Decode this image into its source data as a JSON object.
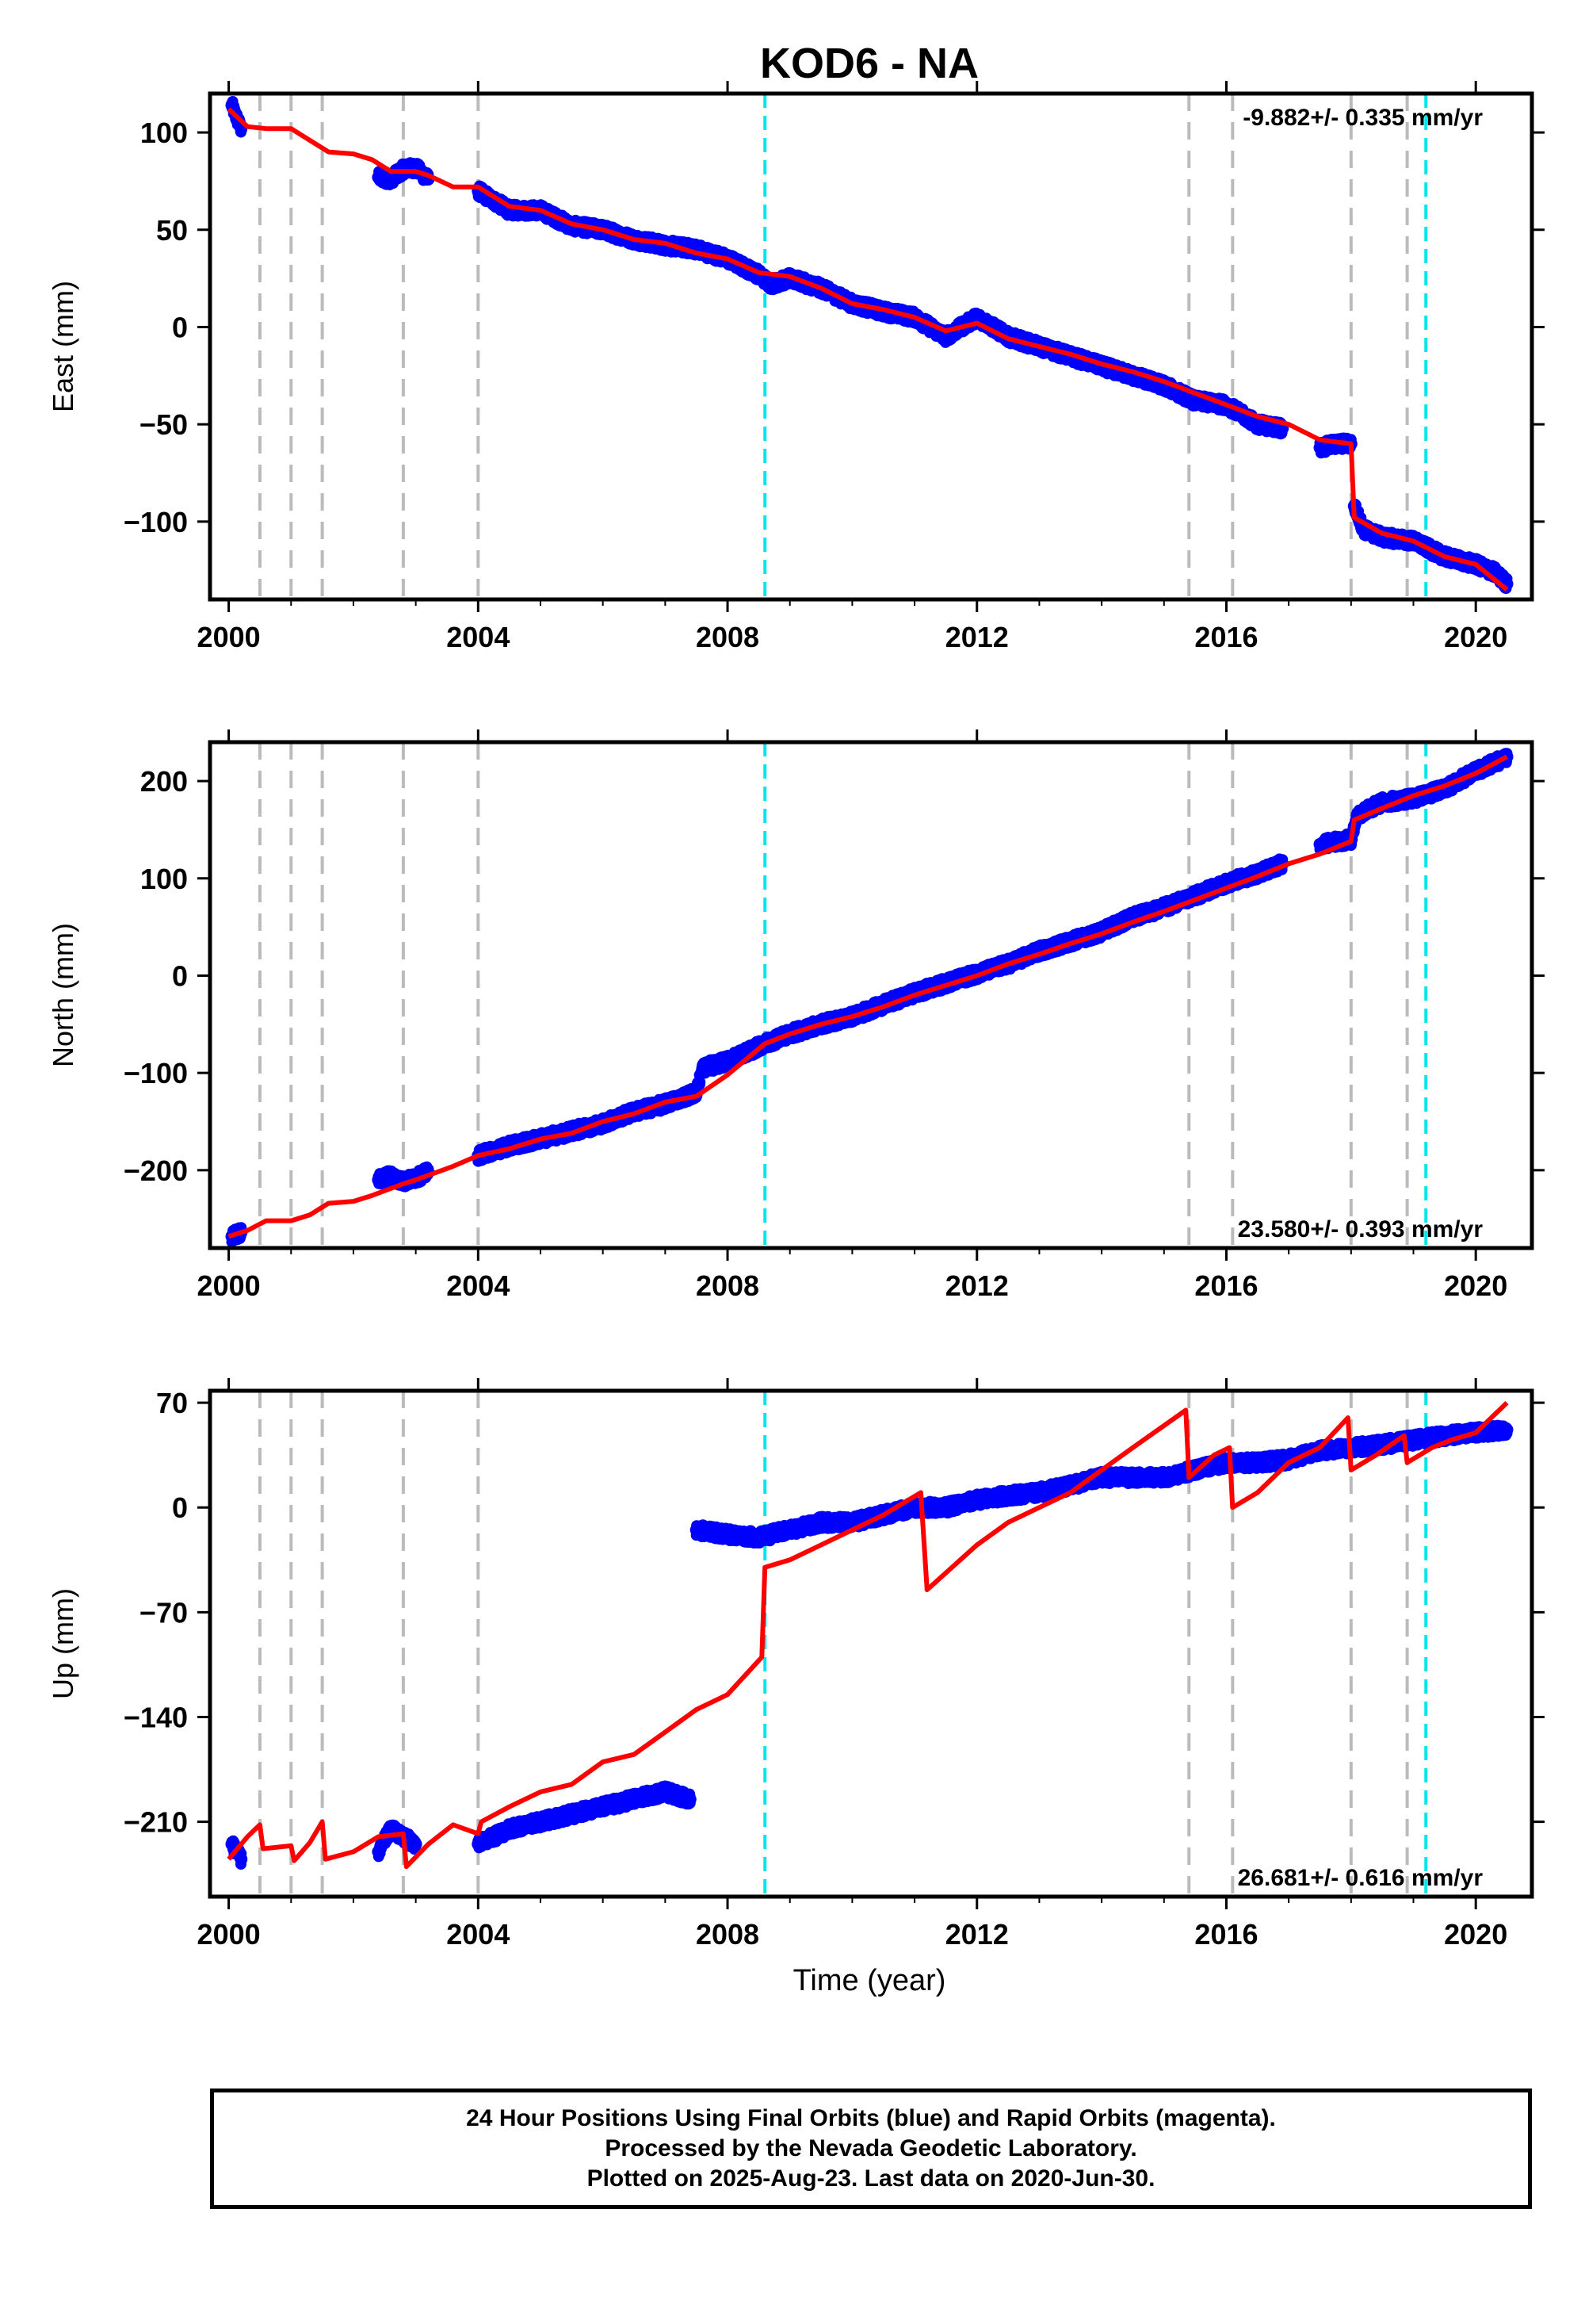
{
  "title": "KOD6 - NA",
  "xlabel": "Time (year)",
  "caption": {
    "line1": "24 Hour Positions Using Final Orbits (blue) and Rapid Orbits (magenta).",
    "line2": "Processed by the Nevada Geodetic Laboratory.",
    "line3": "Plotted on 2025-Aug-23. Last data on 2020-Jun-30."
  },
  "colors": {
    "data_points": "#0000ff",
    "model_line": "#ff0000",
    "equipment_change_lines": "#bbbbbb",
    "earthquake_lines": "#00e5ee"
  },
  "chart_data": [
    {
      "type": "scatter",
      "component": "east",
      "ylabel": "East (mm)",
      "xlim": [
        1999.7,
        2020.9
      ],
      "ylim": [
        -140,
        120
      ],
      "xticks": [
        2000,
        2004,
        2008,
        2012,
        2016,
        2020
      ],
      "yticks": [
        -100,
        -50,
        0,
        50,
        100
      ],
      "velocity_label": "-9.882+/- 0.335 mm/yr",
      "velocity_label_position": "top-right",
      "grid": false,
      "equipment_change_years": [
        2000.5,
        2001.0,
        2001.5,
        2002.8,
        2004.0,
        2015.4,
        2016.1,
        2018.0,
        2018.9
      ],
      "earthquake_years": [
        2008.6,
        2019.2
      ],
      "data_segments": [
        {
          "x": [
            2000.05,
            2000.12,
            2000.2
          ],
          "y": [
            114,
            108,
            102
          ]
        },
        {
          "x": [
            2002.4,
            2002.6,
            2002.8,
            2003.0,
            2003.1,
            2003.2
          ],
          "y": [
            77,
            76,
            81,
            82,
            79,
            76
          ]
        },
        {
          "x": [
            2004.0,
            2004.5,
            2005.0,
            2005.5,
            2006.0,
            2006.5,
            2007.0,
            2007.5,
            2008.0,
            2008.5,
            2008.7,
            2009.0,
            2009.5,
            2010.0,
            2010.5,
            2011.0,
            2011.5,
            2012.0,
            2012.5,
            2013.0,
            2013.5,
            2014.0,
            2014.5,
            2015.0,
            2015.5,
            2016.0,
            2016.5,
            2016.9
          ],
          "y": [
            70,
            60,
            60,
            52,
            50,
            45,
            42,
            40,
            35,
            27,
            22,
            25,
            20,
            12,
            8,
            5,
            -5,
            5,
            -5,
            -10,
            -15,
            -20,
            -25,
            -30,
            -38,
            -40,
            -50,
            -52
          ]
        },
        {
          "x": [
            2017.5,
            2017.8,
            2018.0
          ],
          "y": [
            -62,
            -60,
            -60
          ]
        },
        {
          "x": [
            2018.05,
            2018.2,
            2018.5,
            2019.0,
            2019.5,
            2020.0,
            2020.3,
            2020.5
          ],
          "y": [
            -92,
            -104,
            -108,
            -110,
            -118,
            -122,
            -126,
            -132
          ]
        }
      ],
      "model": {
        "x": [
          2000.0,
          2000.3,
          2000.6,
          2001.0,
          2001.3,
          2001.6,
          2002.0,
          2002.3,
          2002.6,
          2003.0,
          2003.2,
          2003.6,
          2004.0,
          2004.5,
          2005.0,
          2005.5,
          2006.0,
          2006.5,
          2007.0,
          2007.5,
          2008.0,
          2008.5,
          2009.0,
          2009.5,
          2010.0,
          2010.5,
          2011.0,
          2011.5,
          2012.0,
          2012.5,
          2013.0,
          2013.5,
          2014.0,
          2014.5,
          2015.0,
          2015.5,
          2016.0,
          2016.5,
          2017.0,
          2017.5,
          2018.0,
          2018.05,
          2018.5,
          2019.0,
          2019.5,
          2020.0,
          2020.5
        ],
        "y": [
          112,
          103,
          102,
          102,
          96,
          90,
          89,
          86,
          80,
          80,
          78,
          72,
          72,
          62,
          60,
          53,
          50,
          45,
          43,
          38,
          35,
          28,
          26,
          20,
          12,
          9,
          5,
          -2,
          2,
          -6,
          -10,
          -14,
          -19,
          -23,
          -28,
          -34,
          -40,
          -46,
          -50,
          -58,
          -60,
          -98,
          -106,
          -110,
          -118,
          -122,
          -135
        ]
      }
    },
    {
      "type": "scatter",
      "component": "north",
      "ylabel": "North (mm)",
      "xlim": [
        1999.7,
        2020.9
      ],
      "ylim": [
        -280,
        240
      ],
      "xticks": [
        2000,
        2004,
        2008,
        2012,
        2016,
        2020
      ],
      "yticks": [
        -200,
        -100,
        0,
        100,
        200
      ],
      "velocity_label": "23.580+/- 0.393 mm/yr",
      "velocity_label_position": "bottom-right",
      "grid": false,
      "equipment_change_years": [
        2000.5,
        2001.0,
        2001.5,
        2002.8,
        2004.0,
        2015.4,
        2016.1,
        2018.0,
        2018.9
      ],
      "earthquake_years": [
        2008.6,
        2019.2
      ],
      "data_segments": [
        {
          "x": [
            2000.05,
            2000.2
          ],
          "y": [
            -268,
            -264
          ]
        },
        {
          "x": [
            2002.4,
            2002.6,
            2002.8,
            2003.0,
            2003.2
          ],
          "y": [
            -210,
            -205,
            -212,
            -208,
            -202
          ]
        },
        {
          "x": [
            2004.0,
            2004.5,
            2005.0,
            2005.5,
            2006.0,
            2006.5,
            2007.0,
            2007.5,
            2007.6,
            2008.0,
            2008.6,
            2009.0,
            2009.5,
            2010.0,
            2010.5,
            2011.0,
            2011.5,
            2012.0,
            2012.5,
            2013.0,
            2013.5,
            2014.0,
            2014.5,
            2015.0,
            2015.5,
            2016.0,
            2016.5,
            2016.9
          ],
          "y": [
            -185,
            -175,
            -168,
            -160,
            -152,
            -140,
            -132,
            -120,
            -95,
            -88,
            -70,
            -60,
            -50,
            -42,
            -30,
            -18,
            -8,
            2,
            12,
            25,
            35,
            45,
            60,
            70,
            82,
            95,
            105,
            115
          ]
        },
        {
          "x": [
            2017.5,
            2018.0,
            2018.1,
            2018.5,
            2019.0,
            2019.5,
            2020.0,
            2020.5
          ],
          "y": [
            135,
            140,
            165,
            178,
            182,
            192,
            210,
            225
          ]
        }
      ],
      "model": {
        "x": [
          2000.0,
          2000.3,
          2000.6,
          2001.0,
          2001.3,
          2001.6,
          2002.0,
          2002.3,
          2002.8,
          2003.0,
          2003.6,
          2004.0,
          2004.5,
          2005.0,
          2005.5,
          2006.0,
          2006.5,
          2007.0,
          2007.5,
          2008.0,
          2008.6,
          2009.0,
          2009.5,
          2010.0,
          2010.5,
          2011.0,
          2011.5,
          2012.0,
          2012.5,
          2013.0,
          2013.5,
          2014.0,
          2014.5,
          2015.0,
          2015.5,
          2016.0,
          2016.5,
          2017.0,
          2017.5,
          2018.0,
          2018.05,
          2018.5,
          2019.0,
          2019.5,
          2020.0,
          2020.5
        ],
        "y": [
          -268,
          -262,
          -252,
          -252,
          -246,
          -234,
          -232,
          -226,
          -214,
          -210,
          -196,
          -185,
          -178,
          -168,
          -162,
          -150,
          -142,
          -130,
          -124,
          -102,
          -70,
          -60,
          -50,
          -42,
          -32,
          -20,
          -10,
          0,
          12,
          22,
          33,
          43,
          55,
          66,
          78,
          90,
          102,
          115,
          125,
          138,
          160,
          172,
          185,
          195,
          208,
          225
        ]
      }
    },
    {
      "type": "scatter",
      "component": "up",
      "ylabel": "Up (mm)",
      "xlim": [
        1999.7,
        2020.9
      ],
      "ylim": [
        -260,
        78
      ],
      "xticks": [
        2000,
        2004,
        2008,
        2012,
        2016,
        2020
      ],
      "yticks": [
        -210,
        -140,
        -70,
        0,
        70
      ],
      "velocity_label": "26.681+/- 0.616 mm/yr",
      "velocity_label_position": "bottom-right",
      "grid": false,
      "equipment_change_years": [
        2000.5,
        2001.0,
        2001.5,
        2002.8,
        2004.0,
        2015.4,
        2016.1,
        2018.0,
        2018.9
      ],
      "earthquake_years": [
        2008.6,
        2019.2
      ],
      "data_segments": [
        {
          "x": [
            2000.05,
            2000.2
          ],
          "y": [
            -225,
            -235
          ]
        },
        {
          "x": [
            2002.4,
            2002.6,
            2002.8,
            2003.0
          ],
          "y": [
            -230,
            -215,
            -220,
            -225
          ]
        },
        {
          "x": [
            2004.0,
            2004.5,
            2005.0,
            2005.5,
            2006.0,
            2006.5,
            2007.0,
            2007.4
          ],
          "y": [
            -225,
            -215,
            -210,
            -205,
            -200,
            -195,
            -190,
            -195
          ]
        },
        {
          "x": [
            2007.5,
            2008.0,
            2008.5,
            2009.0,
            2009.5,
            2010.0,
            2010.5,
            2011.0,
            2011.5,
            2012.0,
            2012.5,
            2013.0,
            2013.5,
            2014.0,
            2014.5,
            2015.0,
            2015.5,
            2016.0,
            2016.5,
            2017.0,
            2017.5,
            2018.0,
            2018.5,
            2019.0,
            2019.5,
            2020.0,
            2020.5
          ],
          "y": [
            -15,
            -18,
            -20,
            -15,
            -10,
            -10,
            -5,
            0,
            0,
            5,
            8,
            10,
            15,
            20,
            20,
            20,
            25,
            30,
            30,
            32,
            38,
            40,
            42,
            45,
            48,
            50,
            52
          ]
        }
      ],
      "model": {
        "x": [
          2000.0,
          2000.3,
          2000.5,
          2000.55,
          2001.0,
          2001.05,
          2001.3,
          2001.5,
          2001.55,
          2002.0,
          2002.4,
          2002.8,
          2002.85,
          2003.2,
          2003.6,
          2004.0,
          2004.05,
          2004.5,
          2005.0,
          2005.5,
          2006.0,
          2006.5,
          2007.0,
          2007.5,
          2008.0,
          2008.55,
          2008.6,
          2009.0,
          2009.5,
          2010.0,
          2010.5,
          2011.1,
          2011.2,
          2011.6,
          2012.0,
          2012.5,
          2013.0,
          2013.5,
          2014.0,
          2014.5,
          2015.35,
          2015.4,
          2015.8,
          2016.05,
          2016.1,
          2016.5,
          2017.0,
          2017.5,
          2017.95,
          2018.0,
          2018.4,
          2018.85,
          2018.9,
          2019.3,
          2019.6,
          2020.0,
          2020.5
        ],
        "y": [
          -235,
          -220,
          -212,
          -228,
          -226,
          -236,
          -224,
          -210,
          -235,
          -230,
          -220,
          -218,
          -240,
          -225,
          -212,
          -218,
          -210,
          -200,
          -190,
          -185,
          -170,
          -165,
          -150,
          -135,
          -125,
          -100,
          -40,
          -35,
          -25,
          -15,
          -5,
          10,
          -55,
          -40,
          -25,
          -10,
          0,
          10,
          25,
          40,
          65,
          20,
          35,
          40,
          0,
          10,
          30,
          40,
          60,
          25,
          35,
          48,
          30,
          40,
          45,
          50,
          70
        ]
      }
    }
  ]
}
